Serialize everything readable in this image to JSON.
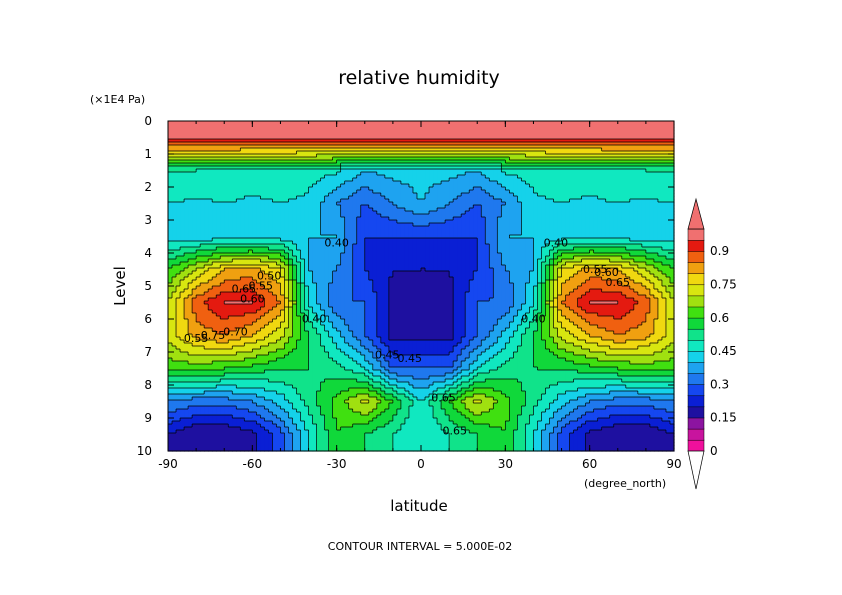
{
  "chart_data": {
    "type": "heatmap",
    "title": "relative humidity",
    "xlabel": "latitude",
    "x_unit": "(degree_north)",
    "ylabel": "Level",
    "y_unit": "(×1E4 Pa)",
    "xlim": [
      -90,
      90
    ],
    "ylim": [
      0,
      10
    ],
    "y_inverted": true,
    "x_ticks": [
      "-90",
      "-60",
      "-30",
      "0",
      "30",
      "60",
      "90"
    ],
    "y_ticks": [
      "0",
      "1",
      "2",
      "3",
      "4",
      "5",
      "6",
      "7",
      "8",
      "9",
      "10"
    ],
    "footer": "CONTOUR INTERVAL = 5.000E-02",
    "colorbar": {
      "labels": [
        "0",
        "0.15",
        "0.3",
        "0.45",
        "0.6",
        "0.75",
        "0.9"
      ],
      "levels": [
        0,
        0.05,
        0.1,
        0.15,
        0.2,
        0.25,
        0.3,
        0.35,
        0.4,
        0.45,
        0.5,
        0.55,
        0.6,
        0.65,
        0.7,
        0.75,
        0.8,
        0.85,
        0.9,
        0.95
      ],
      "colors": [
        "#f0109c",
        "#c8149e",
        "#8c14a0",
        "#1e10a0",
        "#0a1fd4",
        "#1547f0",
        "#1f78ee",
        "#1ea3f0",
        "#15d2ea",
        "#10e8c0",
        "#10e38a",
        "#10d83a",
        "#40e010",
        "#a0e010",
        "#d8e610",
        "#f0d810",
        "#f0a010",
        "#f06010",
        "#e41a10",
        "#f07070"
      ]
    },
    "lat": [
      -90,
      -80,
      -70,
      -60,
      -50,
      -40,
      -30,
      -20,
      -10,
      0,
      10,
      20,
      30,
      40,
      50,
      60,
      70,
      80,
      90
    ],
    "level": [
      0.5,
      1.5,
      2.5,
      3.5,
      4.5,
      5.5,
      6.5,
      7.5,
      8.5,
      9.5
    ],
    "values": [
      [
        0.98,
        0.98,
        0.98,
        0.98,
        0.98,
        0.98,
        0.98,
        0.98,
        0.98,
        0.98,
        0.98,
        0.98,
        0.98,
        0.98,
        0.98,
        0.98,
        0.98,
        0.98,
        0.98
      ],
      [
        0.5,
        0.5,
        0.49,
        0.48,
        0.48,
        0.47,
        0.46,
        0.4,
        0.42,
        0.42,
        0.42,
        0.4,
        0.46,
        0.47,
        0.48,
        0.48,
        0.49,
        0.5,
        0.5
      ],
      [
        0.45,
        0.44,
        0.45,
        0.44,
        0.45,
        0.44,
        0.35,
        0.3,
        0.35,
        0.4,
        0.35,
        0.3,
        0.35,
        0.44,
        0.45,
        0.44,
        0.45,
        0.44,
        0.45
      ],
      [
        0.42,
        0.42,
        0.42,
        0.42,
        0.42,
        0.4,
        0.4,
        0.25,
        0.25,
        0.25,
        0.25,
        0.25,
        0.4,
        0.4,
        0.42,
        0.42,
        0.42,
        0.42,
        0.42
      ],
      [
        0.6,
        0.7,
        0.8,
        0.82,
        0.75,
        0.4,
        0.35,
        0.25,
        0.2,
        0.2,
        0.2,
        0.25,
        0.35,
        0.4,
        0.75,
        0.82,
        0.8,
        0.7,
        0.6
      ],
      [
        0.7,
        0.88,
        0.95,
        0.95,
        0.85,
        0.45,
        0.3,
        0.3,
        0.18,
        0.15,
        0.18,
        0.3,
        0.3,
        0.45,
        0.85,
        0.95,
        0.95,
        0.88,
        0.7
      ],
      [
        0.72,
        0.82,
        0.85,
        0.8,
        0.72,
        0.55,
        0.42,
        0.3,
        0.18,
        0.18,
        0.18,
        0.3,
        0.42,
        0.55,
        0.72,
        0.8,
        0.85,
        0.82,
        0.72
      ],
      [
        0.62,
        0.62,
        0.6,
        0.58,
        0.55,
        0.55,
        0.52,
        0.45,
        0.3,
        0.3,
        0.3,
        0.45,
        0.52,
        0.55,
        0.55,
        0.58,
        0.6,
        0.62,
        0.62
      ],
      [
        0.35,
        0.32,
        0.32,
        0.35,
        0.42,
        0.52,
        0.62,
        0.72,
        0.6,
        0.45,
        0.6,
        0.72,
        0.62,
        0.52,
        0.42,
        0.35,
        0.32,
        0.32,
        0.35
      ],
      [
        0.2,
        0.15,
        0.15,
        0.18,
        0.28,
        0.45,
        0.6,
        0.55,
        0.5,
        0.45,
        0.5,
        0.55,
        0.6,
        0.45,
        0.28,
        0.18,
        0.15,
        0.15,
        0.2
      ]
    ],
    "contour_labels": [
      "0.40",
      "0.40",
      "0.45",
      "0.45",
      "0.65",
      "0.50",
      "0.55",
      "0.60",
      "0.65",
      "0.70",
      "0.75",
      "0.55",
      "0.60",
      "0.65",
      "0.40",
      "0.40",
      "0.65",
      "0.55"
    ]
  }
}
